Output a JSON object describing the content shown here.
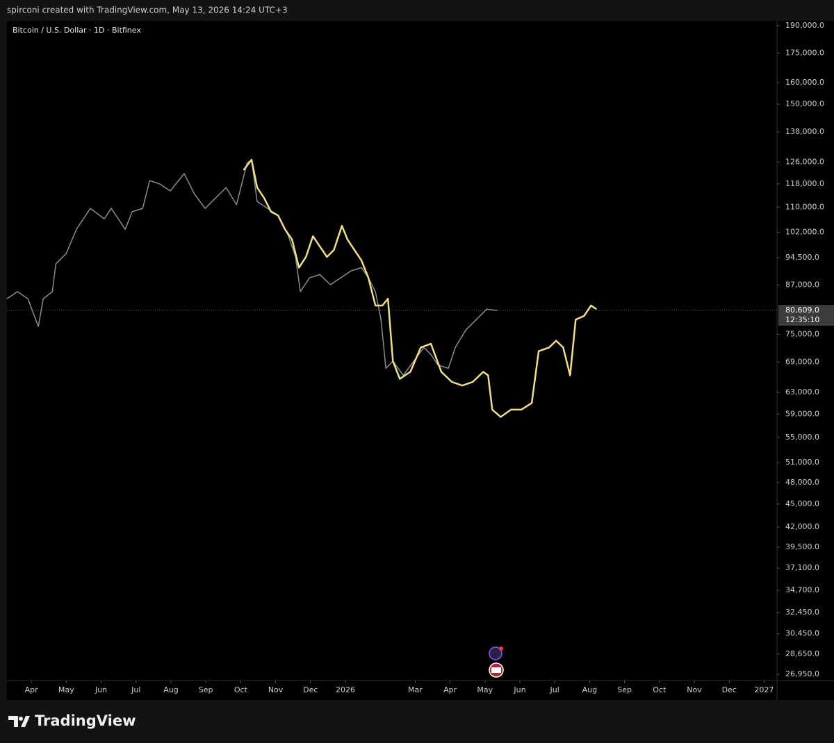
{
  "header": {
    "credit": "spirconi created with TradingView.com, May 13, 2026 14:24 UTC+3"
  },
  "footer": {
    "brand": "TradingView"
  },
  "chart_data": {
    "type": "line",
    "title": "Bitcoin / U.S. Dollar · 1D · Bitfinex",
    "ylog": true,
    "grid": false,
    "xlim": [
      0.3,
      22.37
    ],
    "xticks": [
      {
        "value": 1,
        "label": "Apr"
      },
      {
        "value": 2,
        "label": "May"
      },
      {
        "value": 3,
        "label": "Jun"
      },
      {
        "value": 4,
        "label": "Jul"
      },
      {
        "value": 5,
        "label": "Aug"
      },
      {
        "value": 6,
        "label": "Sep"
      },
      {
        "value": 7,
        "label": "Oct"
      },
      {
        "value": 8,
        "label": "Nov"
      },
      {
        "value": 9,
        "label": "Dec"
      },
      {
        "value": 10,
        "label": "2026"
      },
      {
        "value": 12,
        "label": "Mar"
      },
      {
        "value": 13,
        "label": "Apr"
      },
      {
        "value": 14,
        "label": "May"
      },
      {
        "value": 15,
        "label": "Jun"
      },
      {
        "value": 16,
        "label": "Jul"
      },
      {
        "value": 17,
        "label": "Aug"
      },
      {
        "value": 18,
        "label": "Sep"
      },
      {
        "value": 19,
        "label": "Oct"
      },
      {
        "value": 20,
        "label": "Nov"
      },
      {
        "value": 21,
        "label": "Dec"
      },
      {
        "value": 22,
        "label": "2027"
      }
    ],
    "ylim": [
      26450,
      192800
    ],
    "yticks": [
      {
        "value": 190000,
        "label": "190,000.0"
      },
      {
        "value": 175000,
        "label": "175,000.0"
      },
      {
        "value": 160000,
        "label": "160,000.0"
      },
      {
        "value": 150000,
        "label": "150,000.0"
      },
      {
        "value": 138000,
        "label": "138,000.0"
      },
      {
        "value": 126000,
        "label": "126,000.0"
      },
      {
        "value": 118000,
        "label": "118,000.0"
      },
      {
        "value": 110000,
        "label": "110,000.0"
      },
      {
        "value": 102000,
        "label": "102,000.0"
      },
      {
        "value": 94500,
        "label": "94,500.0"
      },
      {
        "value": 87000,
        "label": "87,000.0"
      },
      {
        "value": 75000,
        "label": "75,000.0"
      },
      {
        "value": 69000,
        "label": "69,000.0"
      },
      {
        "value": 63000,
        "label": "63,000.0"
      },
      {
        "value": 59000,
        "label": "59,000.0"
      },
      {
        "value": 55000,
        "label": "55,000.0"
      },
      {
        "value": 51000,
        "label": "51,000.0"
      },
      {
        "value": 48000,
        "label": "48,000.0"
      },
      {
        "value": 45000,
        "label": "45,000.0"
      },
      {
        "value": 42000,
        "label": "42,000.0"
      },
      {
        "value": 39500,
        "label": "39,500.0"
      },
      {
        "value": 37100,
        "label": "37,100.0"
      },
      {
        "value": 34700,
        "label": "34,700.0"
      },
      {
        "value": 32450,
        "label": "32,450.0"
      },
      {
        "value": 30450,
        "label": "30,450.0"
      },
      {
        "value": 28650,
        "label": "28,650.0"
      },
      {
        "value": 26950,
        "label": "26,950.0"
      }
    ],
    "last_price": {
      "value": 80609,
      "label": "80,609.0"
    },
    "countdown": "12:35:10",
    "series": [
      {
        "color": "#8c8c8c",
        "x": [
          0.3,
          0.6,
          0.9,
          1.2,
          1.34,
          1.6,
          1.7,
          2.0,
          2.29,
          2.69,
          3.09,
          3.29,
          3.69,
          3.89,
          4.19,
          4.39,
          4.69,
          4.98,
          5.38,
          5.68,
          5.98,
          6.28,
          6.58,
          6.88,
          7.18,
          7.31,
          7.47,
          7.77,
          8.07,
          8.37,
          8.57,
          8.71,
          8.97,
          9.27,
          9.57,
          9.86,
          10.16,
          10.46,
          10.66,
          10.86,
          11.02,
          11.16,
          11.36,
          11.66,
          11.96,
          12.25,
          12.45,
          12.65,
          12.95,
          13.15,
          13.45,
          13.75,
          14.05,
          14.35
        ],
        "values": [
          83500,
          85300,
          83500,
          76800,
          83500,
          85300,
          92700,
          95700,
          102900,
          109600,
          106200,
          109600,
          102900,
          108500,
          109600,
          119200,
          117900,
          115500,
          121700,
          114300,
          109600,
          113100,
          116700,
          110800,
          125600,
          126900,
          111900,
          109600,
          107300,
          100800,
          94700,
          85300,
          88900,
          89800,
          87100,
          88900,
          90800,
          91700,
          88900,
          85300,
          78400,
          67700,
          69200,
          66300,
          69200,
          72100,
          70600,
          68400,
          67700,
          72100,
          76000,
          78400,
          80900,
          80600
        ]
      },
      {
        "color": "#f3df7c",
        "x": [
          7.08,
          7.31,
          7.47,
          7.67,
          7.87,
          8.07,
          8.27,
          8.47,
          8.67,
          8.87,
          9.07,
          9.27,
          9.47,
          9.67,
          9.9,
          10.06,
          10.26,
          10.46,
          10.66,
          10.86,
          11.06,
          11.22,
          11.36,
          11.56,
          11.86,
          12.16,
          12.45,
          12.75,
          13.05,
          13.35,
          13.65,
          13.95,
          14.09,
          14.21,
          14.45,
          14.75,
          15.04,
          15.34,
          15.54,
          15.84,
          16.04,
          16.24,
          16.44,
          16.6,
          16.84,
          17.04,
          17.2
        ],
        "values": [
          123000,
          126900,
          116700,
          113100,
          108500,
          107300,
          102900,
          99800,
          91700,
          94700,
          100800,
          97700,
          94700,
          96700,
          104000,
          99800,
          96700,
          93700,
          88900,
          81800,
          81800,
          83500,
          69200,
          65600,
          67000,
          72100,
          72900,
          67000,
          65000,
          64300,
          65000,
          67000,
          66300,
          59800,
          58500,
          59800,
          59800,
          61000,
          71300,
          72100,
          73600,
          72100,
          66300,
          78400,
          79300,
          81800,
          80900
        ]
      }
    ]
  }
}
